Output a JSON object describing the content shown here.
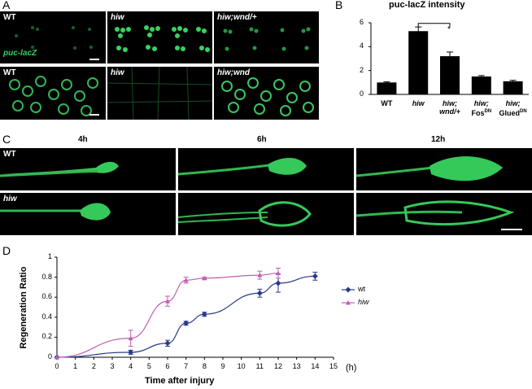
{
  "panels": {
    "A": {
      "letter": "A",
      "top_row": [
        {
          "label": "WT",
          "italic": false
        },
        {
          "label": "hiw",
          "italic": true
        },
        {
          "label": "hiw;wnd/+",
          "italic": true
        }
      ],
      "marker_label": "puc-lacZ",
      "bottom_row": [
        {
          "label": "WT",
          "italic": false
        },
        {
          "label": "hiw",
          "italic": true
        },
        {
          "label": "hiw;wnd",
          "italic": true
        }
      ]
    },
    "B": {
      "letter": "B",
      "title": "puc-lacZ intensity",
      "significance": "*"
    },
    "C": {
      "letter": "C",
      "times": [
        "4h",
        "6h",
        "12h"
      ],
      "rows": [
        "WT",
        "hiw"
      ]
    },
    "D": {
      "letter": "D",
      "legend": [
        {
          "label": "wt",
          "color": "#283a8c"
        },
        {
          "label": "hiw",
          "color": "#c05fb4"
        }
      ],
      "unit_label": "(h)"
    }
  },
  "chart_data": [
    {
      "type": "bar",
      "title": "puc-lacZ intensity",
      "categories": [
        "WT",
        "hiw",
        "hiw; wnd/+",
        "hiw; Fos DN",
        "hiw; Glued DN"
      ],
      "category_lines": [
        [
          "WT"
        ],
        [
          "hiw"
        ],
        [
          "hiw;",
          "wnd/+"
        ],
        [
          "hiw;",
          "Fos",
          "DN"
        ],
        [
          "hiw;",
          "Glued",
          "DN"
        ]
      ],
      "values": [
        1.0,
        5.3,
        3.2,
        1.5,
        1.1
      ],
      "errors": [
        0.05,
        0.35,
        0.35,
        0.08,
        0.08
      ],
      "ylim": [
        0,
        6
      ],
      "yticks": [
        0,
        2,
        4,
        6
      ],
      "xlabel": "",
      "ylabel": "",
      "grid": false,
      "bar_color": "#000000"
    },
    {
      "type": "line",
      "title": "",
      "xlabel": "Time after injury",
      "ylabel": "Regeneration Ratio",
      "xlim": [
        0,
        15
      ],
      "ylim": [
        0,
        1
      ],
      "xticks": [
        0,
        1,
        2,
        3,
        4,
        5,
        6,
        7,
        8,
        9,
        10,
        11,
        12,
        13,
        14,
        15
      ],
      "yticks": [
        0,
        0.2,
        0.4,
        0.6,
        0.8,
        1
      ],
      "grid": false,
      "legend_position": "right",
      "series": [
        {
          "name": "wt",
          "color": "#283a8c",
          "marker": "diamond",
          "x": [
            0,
            4,
            6,
            7,
            8,
            11,
            12,
            14
          ],
          "y": [
            0.0,
            0.05,
            0.14,
            0.34,
            0.43,
            0.64,
            0.74,
            0.81
          ],
          "err": [
            0.0,
            0.02,
            0.03,
            0.02,
            0.02,
            0.04,
            0.09,
            0.04
          ]
        },
        {
          "name": "hiw",
          "color": "#c05fb4",
          "marker": "triangle",
          "x": [
            0,
            4,
            6,
            7,
            8,
            11,
            12
          ],
          "y": [
            0.0,
            0.19,
            0.56,
            0.77,
            0.79,
            0.82,
            0.84
          ],
          "err": [
            0.0,
            0.08,
            0.05,
            0.03,
            0.01,
            0.04,
            0.05
          ]
        }
      ]
    }
  ]
}
